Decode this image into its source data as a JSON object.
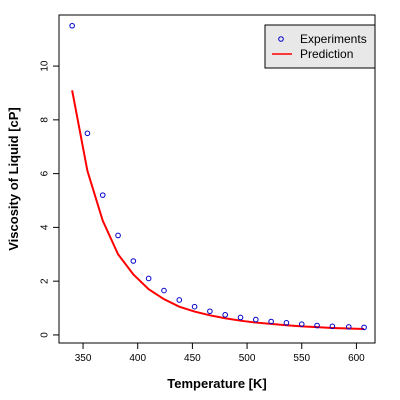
{
  "chart_data": {
    "type": "scatter",
    "xlabel": "Temperature [K]",
    "ylabel": "Viscosity of Liquid [cP]",
    "xlim": [
      328,
      617
    ],
    "ylim": [
      -0.3,
      11.9
    ],
    "x_ticks": [
      350,
      400,
      450,
      500,
      550,
      600
    ],
    "y_ticks": [
      0,
      2,
      4,
      6,
      8,
      10
    ],
    "legend_position": "top-right",
    "colors": {
      "experiments": "#0000cc",
      "prediction": "#ff0000"
    },
    "series": [
      {
        "name": "Experiments",
        "type": "scatter",
        "x": [
          340,
          354,
          368,
          382,
          396,
          410,
          424,
          438,
          452,
          466,
          480,
          494,
          508,
          522,
          536,
          550,
          564,
          578,
          593,
          607
        ],
        "y": [
          11.5,
          7.5,
          5.2,
          3.7,
          2.75,
          2.1,
          1.65,
          1.3,
          1.05,
          0.88,
          0.75,
          0.65,
          0.57,
          0.5,
          0.45,
          0.4,
          0.35,
          0.32,
          0.3,
          0.28
        ]
      },
      {
        "name": "Prediction",
        "type": "line",
        "x": [
          340,
          354,
          368,
          382,
          396,
          410,
          424,
          438,
          452,
          466,
          480,
          494,
          508,
          522,
          536,
          550,
          564,
          578,
          593,
          607
        ],
        "y": [
          9.1,
          6.1,
          4.25,
          3.0,
          2.25,
          1.7,
          1.33,
          1.05,
          0.87,
          0.73,
          0.62,
          0.53,
          0.46,
          0.41,
          0.36,
          0.32,
          0.29,
          0.26,
          0.24,
          0.22
        ]
      }
    ]
  }
}
